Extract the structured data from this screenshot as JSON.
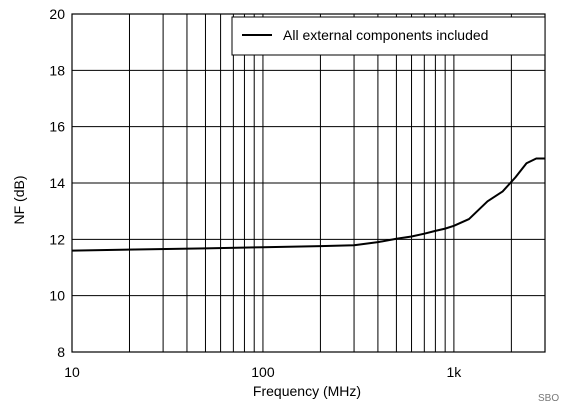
{
  "chart_data": {
    "type": "line",
    "title": "",
    "xlabel": "Frequency (MHz)",
    "ylabel": "NF (dB)",
    "xscale": "log",
    "xlim": [
      10,
      3000
    ],
    "ylim": [
      8,
      20
    ],
    "grid": true,
    "legend_position": "top-right",
    "x_tick_labels": [
      {
        "value": 10,
        "label": "10"
      },
      {
        "value": 100,
        "label": "100"
      },
      {
        "value": 1000,
        "label": "1k"
      }
    ],
    "y_tick_labels": [
      {
        "value": 8,
        "label": "8"
      },
      {
        "value": 10,
        "label": "10"
      },
      {
        "value": 12,
        "label": "12"
      },
      {
        "value": 14,
        "label": "14"
      },
      {
        "value": 16,
        "label": "16"
      },
      {
        "value": 18,
        "label": "18"
      },
      {
        "value": 20,
        "label": "20"
      }
    ],
    "series": [
      {
        "name": "All external components included",
        "color": "#000000",
        "x": [
          10,
          50,
          100,
          200,
          300,
          400,
          500,
          600,
          700,
          800,
          900,
          1000,
          1200,
          1500,
          1800,
          2100,
          2400,
          2700,
          3000
        ],
        "y": [
          11.6,
          11.68,
          11.72,
          11.76,
          11.79,
          11.9,
          12.02,
          12.1,
          12.2,
          12.3,
          12.38,
          12.48,
          12.72,
          13.35,
          13.7,
          14.2,
          14.7,
          14.87,
          14.87
        ]
      }
    ]
  },
  "footer_code": "SBO"
}
